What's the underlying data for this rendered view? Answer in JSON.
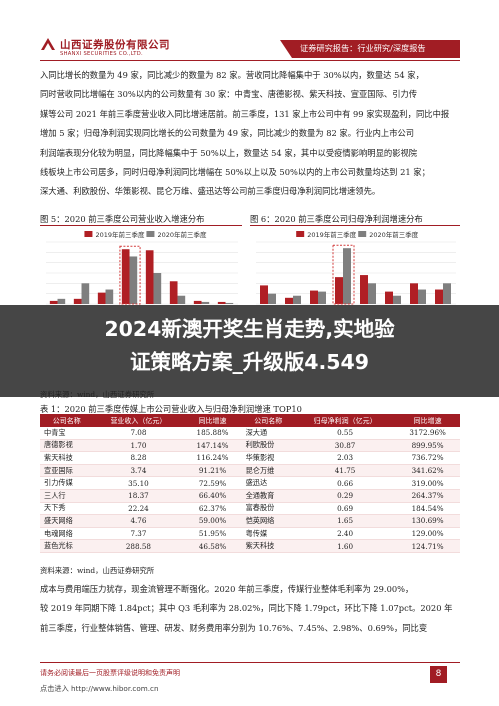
{
  "header": {
    "company_cn": "山西证券股份有限公司",
    "company_en": "SHANXI SECURITIES CO.,LTD.",
    "report_type": "证券研究报告：行业研究/深度报告"
  },
  "paragraph1": [
    "入同比增长的数量为 49 家，同比减少的数量为 82 家。营收同比降幅集中于 30%以内，数量达 54 家，",
    "同时营收同比增幅在 30%以内的公司数量有 30 家：中青宝、唐德影视、紫天科技、宣亚国际、引力传",
    "媒等公司 2021 年前三季度营业收入同比增速居前。前三季度，131 家上市公司中有 99 家实现盈利，同比中报",
    "增加 5 家；归母净利润实现同比增长的公司数量为 49 家，同比减少的数量为 82 家。行业内上市公司",
    "利润端表现分化较为明显，同比降幅集中于 50%以上，数量达 54 家，其中以受疫情影响明显的影视院",
    "线板块上市公司居多，同时归母净利润同比增幅在 50%以上以及 50%以内的上市公司数量均达到 21 家；",
    "深大通、利欧股份、华策影视、昆仑万维、盛迅达等公司前三季度归母净利润同比增速领先。"
  ],
  "figure5": {
    "caption": "图 5：2020 前三季度公司营业收入增速分布",
    "chart_data": {
      "type": "bar",
      "series": [
        {
          "name": "2019年前三季度",
          "color": "#b01f24",
          "values": [
            3,
            5,
            11,
            53,
            52,
            22,
            3,
            2
          ]
        },
        {
          "name": "2020年前三季度",
          "color": "#7f7f7f",
          "values": [
            5,
            20,
            14,
            46,
            30,
            8,
            2,
            1
          ]
        }
      ],
      "ylim": [
        0,
        60
      ],
      "grid": true,
      "legend": "top"
    }
  },
  "figure6": {
    "caption": "图 6：2020 前三季度公司归母净利润增速分布",
    "chart_data": {
      "type": "bar",
      "series": [
        {
          "name": "2019年前三季度",
          "color": "#b01f24",
          "values": [
            18,
            6,
            13,
            26,
            28,
            12,
            20,
            14
          ]
        },
        {
          "name": "2020年前三季度",
          "color": "#7f7f7f",
          "values": [
            10,
            8,
            12,
            54,
            20,
            8,
            14,
            20
          ]
        }
      ],
      "ylim": [
        0,
        60
      ],
      "grid": true,
      "legend": "top"
    }
  },
  "banner": {
    "line1": "2024新澳开奖生肖走势,实地验",
    "line2": "证策略方案_升级版4.549"
  },
  "source_fig": "资料来源：wind，山西证券研究所",
  "table1": {
    "caption": "表 1：2020 前三季度传媒上市公司营业收入与归母净利润增速 TOP10",
    "headers": [
      "公司名称",
      "营业收入（亿元）",
      "同比增速",
      "公司名称",
      "归母净利润（亿元）",
      "同比增速"
    ],
    "rows": [
      [
        "中青宝",
        "7.08",
        "185.88%",
        "深大通",
        "0.55",
        "3172.96%"
      ],
      [
        "唐德影视",
        "1.70",
        "147.14%",
        "利欧股份",
        "30.87",
        "899.95%"
      ],
      [
        "紫天科技",
        "8.28",
        "116.24%",
        "华策影视",
        "2.03",
        "736.72%"
      ],
      [
        "宣亚国际",
        "3.74",
        "91.21%",
        "昆仑万维",
        "41.75",
        "341.62%"
      ],
      [
        "引力传媒",
        "35.10",
        "72.59%",
        "盛迅达",
        "0.66",
        "319.00%"
      ],
      [
        "三人行",
        "18.37",
        "66.40%",
        "全通教育",
        "0.29",
        "264.37%"
      ],
      [
        "天下秀",
        "22.24",
        "62.37%",
        "富春股份",
        "0.69",
        "184.54%"
      ],
      [
        "盛天网络",
        "4.76",
        "59.00%",
        "恺英网络",
        "1.65",
        "130.69%"
      ],
      [
        "电魂网络",
        "7.37",
        "51.95%",
        "粤传媒",
        "2.40",
        "129.00%"
      ],
      [
        "蓝色光标",
        "288.58",
        "46.58%",
        "紫天科技",
        "1.60",
        "124.71%"
      ]
    ]
  },
  "source_tbl": "资料来源：wind，山西证券研究所",
  "paragraph2": [
    "成本与费用端压力犹存，现金流管理不断强化。2020 年前三季度，传媒行业整体毛利率为 29.00%，",
    "较 2019 年同期下降 1.84pct；其中 Q3 毛利率为 28.02%，同比下降 1.79pct，环比下降 1.07pct。2020 年",
    "前三季度，行业整体销售、管理、研发、财务费用率分别为 10.76%、7.45%、2.98%、0.69%，同比变"
  ],
  "footer": {
    "disclaimer": "请务必阅读最后一页股票评级说明和免责声明",
    "page_number": "8",
    "url": "点击进入 http://www.hibor.com.cn"
  }
}
